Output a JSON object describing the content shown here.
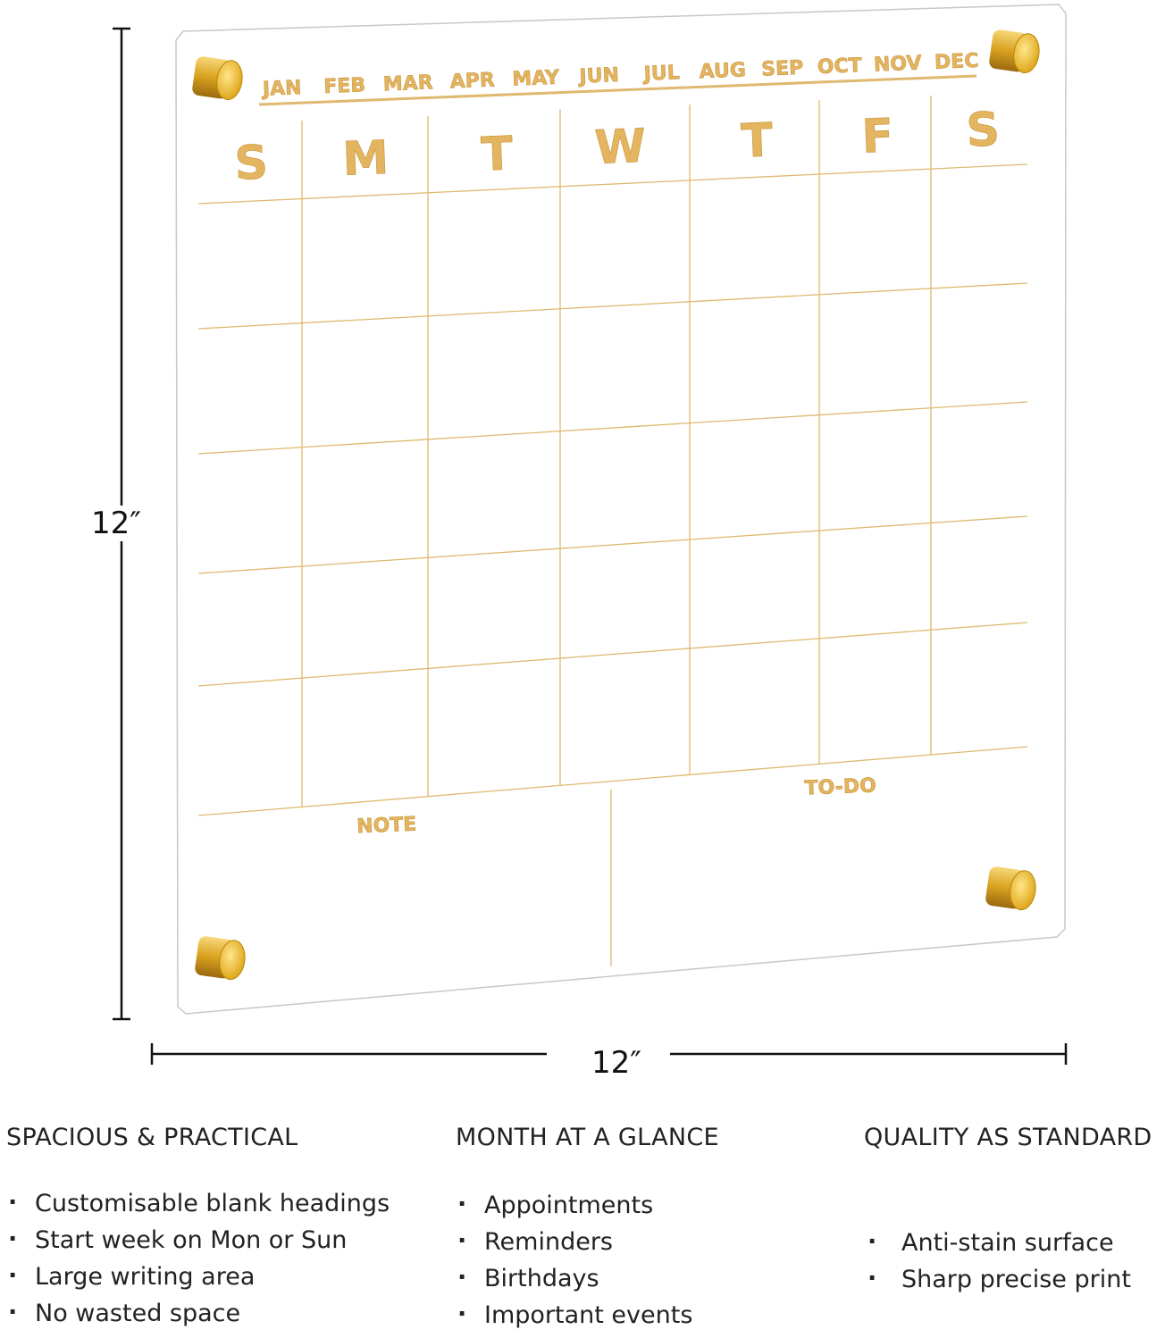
{
  "board": {
    "months": [
      "JAN",
      "FEB",
      "MAR",
      "APR",
      "MAY",
      "JUN",
      "JUL",
      "AUG",
      "SEP",
      "OCT",
      "NOV",
      "DEC"
    ],
    "weekdays": [
      "S",
      "M",
      "T",
      "W",
      "T",
      "F",
      "S"
    ],
    "note_label": "NOTE",
    "todo_label": "TO-DO",
    "accent_color": "#e3b560"
  },
  "dimensions": {
    "height": "12″",
    "width": "12″"
  },
  "features": [
    {
      "heading": "SPACIOUS & PRACTICAL",
      "items": [
        "Customisable blank headings",
        "Start week on Mon or Sun",
        "Large writing area",
        "No wasted space"
      ]
    },
    {
      "heading": "MONTH AT A GLANCE",
      "items": [
        "Appointments",
        "Reminders",
        "Birthdays",
        "Important events"
      ]
    },
    {
      "heading": "QUALITY AS STANDARD",
      "items": [
        "Anti-stain surface",
        "Sharp precise print"
      ]
    }
  ]
}
